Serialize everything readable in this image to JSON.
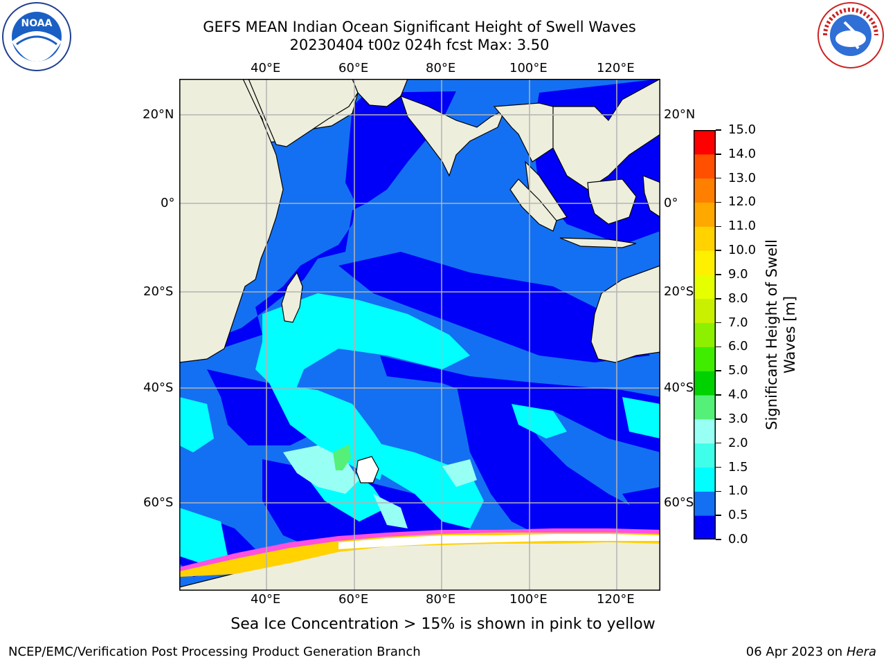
{
  "title": {
    "line1": "GEFS MEAN Indian Ocean Significant Height of Swell Waves",
    "line2": "20230404 t00z 024h fcst   Max: 3.50"
  },
  "logos": {
    "left": {
      "icon": "noaa-logo-icon",
      "text": "NOAA"
    },
    "right": {
      "icon": "nws-logo-icon",
      "text": "NATIONAL WEATHER SERVICE"
    }
  },
  "map": {
    "lon_labels": [
      "40°E",
      "60°E",
      "80°E",
      "100°E",
      "120°E"
    ],
    "lat_labels_left": [
      "20°N",
      "0°",
      "20°S",
      "40°S",
      "60°S"
    ],
    "lat_labels_right": [
      "20°N",
      "0°",
      "20°S",
      "40°S",
      "60°S"
    ],
    "colors": {
      "land": "#eeeedd",
      "ocean_base": "#1470f2",
      "grid": "#b4b4b4"
    }
  },
  "colorbar": {
    "title_line1": "Significant Height of Swell",
    "title_line2": "Waves [m]",
    "ticks": [
      "15.0",
      "14.0",
      "13.0",
      "12.0",
      "11.0",
      "10.0",
      "9.0",
      "8.0",
      "7.0",
      "6.0",
      "5.0",
      "4.0",
      "3.0",
      "2.0",
      "1.5",
      "1.0",
      "0.5",
      "0.0"
    ],
    "colors_bottom_to_top": [
      "#0000f8",
      "#1470f2",
      "#00ffff",
      "#40ffea",
      "#98fff4",
      "#55f078",
      "#00d200",
      "#40ec00",
      "#8cf000",
      "#c8f000",
      "#e6ff00",
      "#fff000",
      "#ffd200",
      "#ffa800",
      "#ff8000",
      "#ff5000",
      "#ff0000"
    ]
  },
  "note": "Sea Ice Concentration > 15% is shown in pink to yellow",
  "footer": {
    "left": "NCEP/EMC/Verification Post Processing Product Generation Branch",
    "right_date": "06 Apr 2023 on",
    "right_host": "Hera"
  }
}
